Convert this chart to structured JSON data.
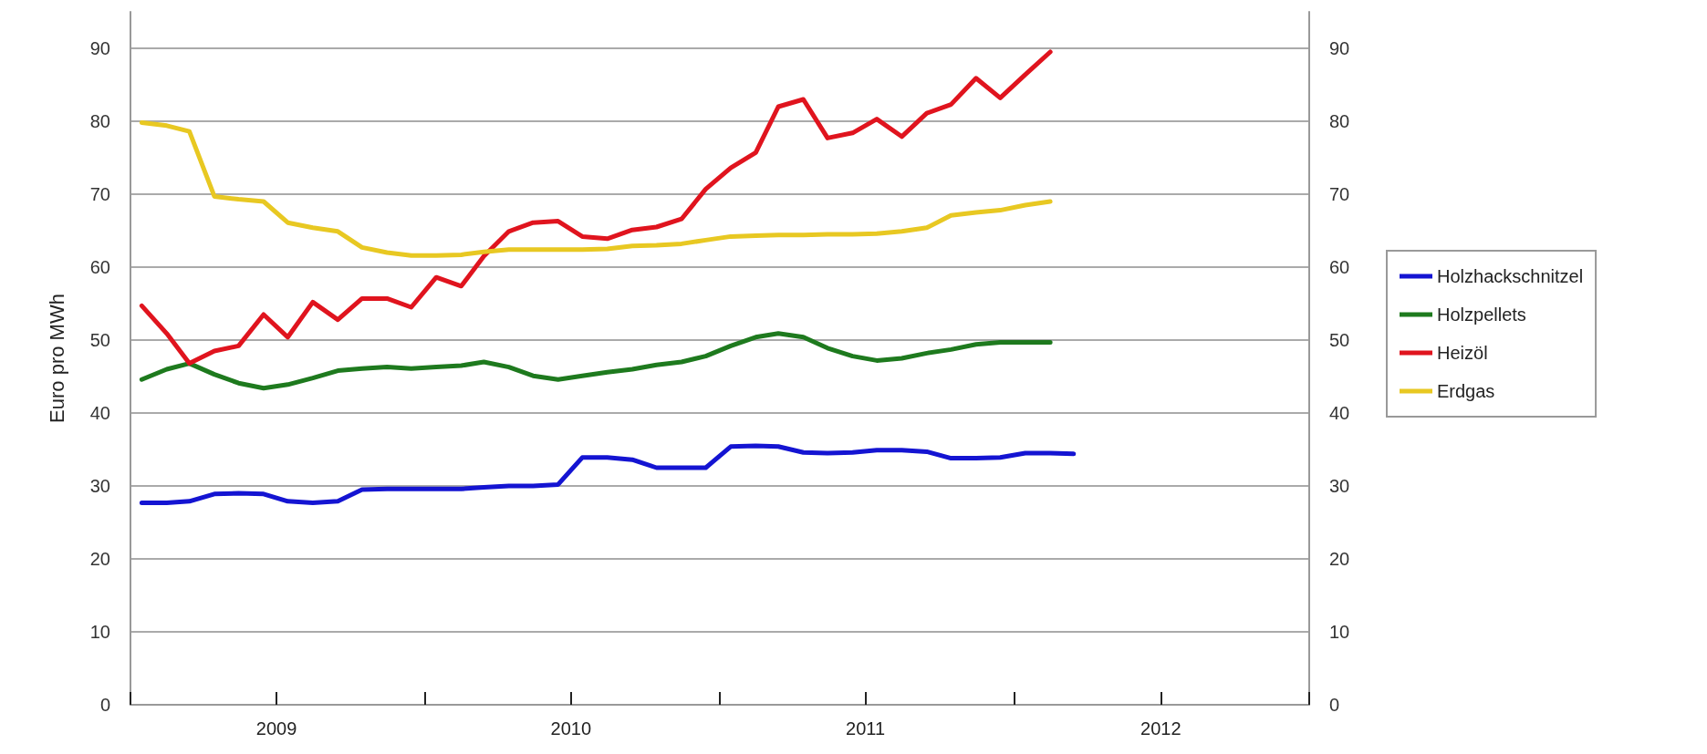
{
  "chart_data": {
    "type": "line",
    "ylabel": "Euro pro MWh",
    "x": [
      "2009-01-15",
      "2009-02-15",
      "2009-03-15",
      "2009-04-15",
      "2009-05-15",
      "2009-06-15",
      "2009-07-15",
      "2009-08-15",
      "2009-09-15",
      "2009-10-15",
      "2009-11-15",
      "2009-12-15",
      "2010-01-15",
      "2010-02-15",
      "2010-03-15",
      "2010-04-15",
      "2010-05-15",
      "2010-06-15",
      "2010-07-15",
      "2010-08-15",
      "2010-09-15",
      "2010-10-15",
      "2010-11-15",
      "2010-12-15",
      "2011-01-15",
      "2011-02-15",
      "2011-03-15",
      "2011-04-15",
      "2011-05-15",
      "2011-06-15",
      "2011-07-15",
      "2011-08-15",
      "2011-09-15",
      "2011-10-15",
      "2011-11-15",
      "2011-12-15",
      "2012-01-15",
      "2012-02-15",
      "2012-03-15"
    ],
    "series": [
      {
        "name": "Holzhackschnitzel",
        "color": "#1414d2",
        "values": [
          27.7,
          27.7,
          27.9,
          28.9,
          29,
          28.9,
          27.9,
          27.7,
          27.9,
          29.5,
          29.6,
          29.6,
          29.6,
          29.6,
          29.8,
          30,
          30,
          30.2,
          33.9,
          33.9,
          33.6,
          32.5,
          32.5,
          32.5,
          35.4,
          35.5,
          35.4,
          34.6,
          34.5,
          34.6,
          34.9,
          34.9,
          34.7,
          33.8,
          33.8,
          33.9,
          34.5,
          34.5,
          34.4
        ]
      },
      {
        "name": "Holzpellets",
        "color": "#1e7a1e",
        "values": [
          44.6,
          46,
          46.8,
          45.3,
          44.1,
          43.4,
          43.9,
          44.8,
          45.8,
          46.1,
          46.3,
          46.1,
          46.3,
          46.5,
          47,
          46.3,
          45.1,
          44.6,
          45.1,
          45.6,
          46,
          46.6,
          47,
          47.8,
          49.2,
          50.4,
          50.9,
          50.4,
          48.9,
          47.8,
          47.2,
          47.5,
          48.2,
          48.7,
          49.4,
          49.7,
          49.7,
          49.7,
          null
        ]
      },
      {
        "name": "Heizöl",
        "color": "#e0141e",
        "values": [
          54.7,
          50.9,
          46.8,
          48.5,
          49.2,
          53.5,
          50.4,
          55.2,
          52.8,
          55.7,
          55.7,
          54.5,
          58.6,
          57.4,
          61.5,
          64.9,
          66.1,
          66.3,
          64.2,
          63.9,
          65.1,
          65.5,
          66.6,
          70.7,
          73.6,
          75.7,
          82,
          83,
          77.7,
          78.4,
          80.3,
          77.9,
          81.1,
          82.3,
          85.9,
          83.2,
          86.4,
          89.5,
          null
        ]
      },
      {
        "name": "Erdgas",
        "color": "#e8c822",
        "values": [
          79.8,
          79.4,
          78.6,
          69.7,
          69.3,
          69,
          66.1,
          65.4,
          64.9,
          62.7,
          62,
          61.6,
          61.6,
          61.7,
          62.1,
          62.4,
          62.4,
          62.4,
          62.4,
          62.5,
          62.9,
          63,
          63.2,
          63.7,
          64.2,
          64.3,
          64.4,
          64.4,
          64.5,
          64.5,
          64.6,
          64.9,
          65.4,
          67.1,
          67.5,
          67.8,
          68.5,
          69,
          null
        ]
      }
    ],
    "xlim": [
      "2009-01-01",
      "2013-01-01"
    ],
    "xticks": [
      {
        "value": "2009-01-01",
        "label": null
      },
      {
        "value": "2009-07-01",
        "label": "2009"
      },
      {
        "value": "2010-01-01",
        "label": null
      },
      {
        "value": "2010-07-01",
        "label": "2010"
      },
      {
        "value": "2011-01-01",
        "label": null
      },
      {
        "value": "2011-07-01",
        "label": "2011"
      },
      {
        "value": "2012-01-01",
        "label": null
      },
      {
        "value": "2012-07-01",
        "label": "2012"
      },
      {
        "value": "2013-01-01",
        "label": null
      }
    ],
    "ylim": [
      0,
      95
    ],
    "yticks": [
      0,
      10,
      20,
      30,
      40,
      50,
      60,
      70,
      80,
      90
    ],
    "y2lim": [
      0,
      95
    ],
    "y2ticks": [
      0,
      10,
      20,
      30,
      40,
      50,
      60,
      70,
      80,
      90
    ],
    "grid": "y",
    "legend": "right",
    "marker": "none",
    "line_style": "solid"
  }
}
